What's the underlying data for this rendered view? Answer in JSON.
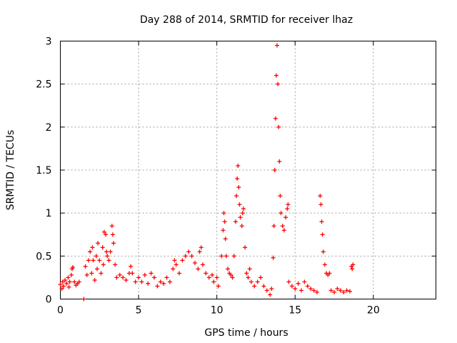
{
  "chart_data": {
    "type": "scatter",
    "title": "Day 288 of 2014, SRMTID for receiver lhaz",
    "xlabel": "GPS time / hours",
    "ylabel": "SRMTID / TECUs",
    "xlim": [
      0,
      24
    ],
    "ylim": [
      0,
      3
    ],
    "xticks": [
      0,
      5,
      10,
      15,
      20
    ],
    "yticks": [
      0,
      0.5,
      1,
      1.5,
      2,
      2.5,
      3
    ],
    "ytick_labels": [
      "0",
      "0.5",
      "1",
      "1.5",
      "2",
      "2.5",
      "3"
    ],
    "grid": true,
    "marker": "plus",
    "color": "#ff0000",
    "series": [
      {
        "name": "SRMTID",
        "points": [
          [
            0.0,
            0.17
          ],
          [
            0.1,
            0.12
          ],
          [
            0.15,
            0.2
          ],
          [
            0.2,
            0.15
          ],
          [
            0.3,
            0.22
          ],
          [
            0.4,
            0.18
          ],
          [
            0.5,
            0.25
          ],
          [
            0.55,
            0.14
          ],
          [
            0.6,
            0.2
          ],
          [
            0.7,
            0.28
          ],
          [
            0.75,
            0.35
          ],
          [
            0.8,
            0.37
          ],
          [
            0.9,
            0.2
          ],
          [
            1.0,
            0.16
          ],
          [
            1.1,
            0.18
          ],
          [
            1.2,
            0.2
          ],
          [
            1.5,
            0.0
          ],
          [
            1.6,
            0.38
          ],
          [
            1.7,
            0.28
          ],
          [
            1.8,
            0.45
          ],
          [
            1.9,
            0.55
          ],
          [
            2.0,
            0.3
          ],
          [
            2.05,
            0.6
          ],
          [
            2.1,
            0.45
          ],
          [
            2.2,
            0.22
          ],
          [
            2.3,
            0.5
          ],
          [
            2.35,
            0.35
          ],
          [
            2.4,
            0.65
          ],
          [
            2.5,
            0.45
          ],
          [
            2.6,
            0.3
          ],
          [
            2.7,
            0.6
          ],
          [
            2.75,
            0.4
          ],
          [
            2.8,
            0.78
          ],
          [
            2.9,
            0.75
          ],
          [
            2.95,
            0.55
          ],
          [
            3.0,
            0.5
          ],
          [
            3.1,
            0.45
          ],
          [
            3.2,
            0.55
          ],
          [
            3.3,
            0.85
          ],
          [
            3.35,
            0.75
          ],
          [
            3.4,
            0.65
          ],
          [
            3.5,
            0.4
          ],
          [
            3.6,
            0.25
          ],
          [
            3.8,
            0.28
          ],
          [
            4.0,
            0.25
          ],
          [
            4.2,
            0.22
          ],
          [
            4.4,
            0.3
          ],
          [
            4.5,
            0.38
          ],
          [
            4.6,
            0.3
          ],
          [
            4.8,
            0.2
          ],
          [
            5.0,
            0.25
          ],
          [
            5.2,
            0.2
          ],
          [
            5.4,
            0.28
          ],
          [
            5.6,
            0.18
          ],
          [
            5.8,
            0.3
          ],
          [
            6.0,
            0.25
          ],
          [
            6.2,
            0.15
          ],
          [
            6.4,
            0.2
          ],
          [
            6.6,
            0.18
          ],
          [
            6.8,
            0.25
          ],
          [
            7.0,
            0.2
          ],
          [
            7.2,
            0.35
          ],
          [
            7.3,
            0.45
          ],
          [
            7.4,
            0.4
          ],
          [
            7.6,
            0.3
          ],
          [
            7.8,
            0.45
          ],
          [
            8.0,
            0.5
          ],
          [
            8.2,
            0.55
          ],
          [
            8.4,
            0.5
          ],
          [
            8.6,
            0.42
          ],
          [
            8.8,
            0.35
          ],
          [
            8.9,
            0.55
          ],
          [
            9.0,
            0.6
          ],
          [
            9.1,
            0.4
          ],
          [
            9.3,
            0.3
          ],
          [
            9.5,
            0.25
          ],
          [
            9.7,
            0.28
          ],
          [
            9.8,
            0.2
          ],
          [
            10.0,
            0.25
          ],
          [
            10.1,
            0.15
          ],
          [
            10.3,
            0.5
          ],
          [
            10.4,
            0.8
          ],
          [
            10.45,
            1.0
          ],
          [
            10.5,
            0.9
          ],
          [
            10.55,
            0.7
          ],
          [
            10.6,
            0.5
          ],
          [
            10.7,
            0.35
          ],
          [
            10.8,
            0.3
          ],
          [
            10.9,
            0.28
          ],
          [
            11.0,
            0.25
          ],
          [
            11.1,
            0.5
          ],
          [
            11.2,
            0.9
          ],
          [
            11.25,
            1.2
          ],
          [
            11.3,
            1.4
          ],
          [
            11.35,
            1.55
          ],
          [
            11.4,
            1.3
          ],
          [
            11.45,
            1.1
          ],
          [
            11.5,
            0.95
          ],
          [
            11.6,
            0.85
          ],
          [
            11.65,
            1.0
          ],
          [
            11.7,
            1.05
          ],
          [
            11.8,
            0.6
          ],
          [
            11.9,
            0.3
          ],
          [
            12.0,
            0.25
          ],
          [
            12.1,
            0.35
          ],
          [
            12.2,
            0.2
          ],
          [
            12.4,
            0.15
          ],
          [
            12.6,
            0.2
          ],
          [
            12.8,
            0.25
          ],
          [
            13.0,
            0.15
          ],
          [
            13.2,
            0.1
          ],
          [
            13.4,
            0.05
          ],
          [
            13.5,
            0.12
          ],
          [
            13.6,
            0.48
          ],
          [
            13.65,
            0.85
          ],
          [
            13.7,
            1.5
          ],
          [
            13.75,
            2.1
          ],
          [
            13.8,
            2.6
          ],
          [
            13.85,
            2.95
          ],
          [
            13.9,
            2.5
          ],
          [
            13.95,
            2.0
          ],
          [
            14.0,
            1.6
          ],
          [
            14.05,
            1.2
          ],
          [
            14.1,
            1.0
          ],
          [
            14.2,
            0.85
          ],
          [
            14.3,
            0.8
          ],
          [
            14.4,
            0.95
          ],
          [
            14.5,
            1.05
          ],
          [
            14.55,
            1.1
          ],
          [
            14.6,
            0.2
          ],
          [
            14.8,
            0.15
          ],
          [
            15.0,
            0.12
          ],
          [
            15.2,
            0.18
          ],
          [
            15.4,
            0.1
          ],
          [
            15.6,
            0.2
          ],
          [
            15.8,
            0.15
          ],
          [
            16.0,
            0.12
          ],
          [
            16.2,
            0.1
          ],
          [
            16.4,
            0.08
          ],
          [
            16.6,
            1.2
          ],
          [
            16.65,
            1.1
          ],
          [
            16.7,
            0.9
          ],
          [
            16.75,
            0.75
          ],
          [
            16.8,
            0.55
          ],
          [
            16.9,
            0.4
          ],
          [
            17.0,
            0.3
          ],
          [
            17.1,
            0.28
          ],
          [
            17.2,
            0.3
          ],
          [
            17.3,
            0.1
          ],
          [
            17.5,
            0.08
          ],
          [
            17.7,
            0.12
          ],
          [
            17.9,
            0.1
          ],
          [
            18.1,
            0.08
          ],
          [
            18.3,
            0.1
          ],
          [
            18.5,
            0.09
          ],
          [
            18.6,
            0.38
          ],
          [
            18.65,
            0.35
          ],
          [
            18.7,
            0.4
          ]
        ]
      }
    ]
  }
}
